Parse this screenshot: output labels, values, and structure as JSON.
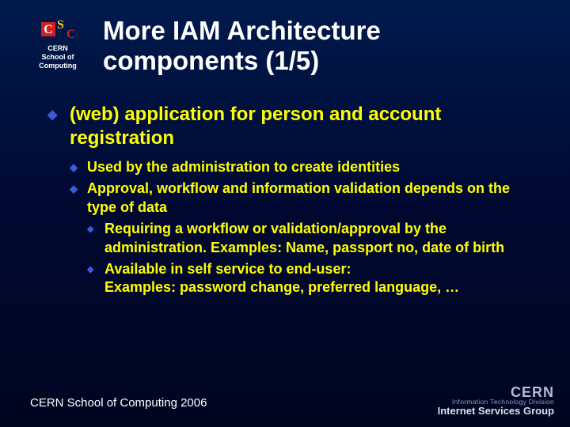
{
  "colors": {
    "bg_top": "#001a4d",
    "bg_bottom": "#000520",
    "title": "#ffffff",
    "body": "#ffff00",
    "bullet": "#3b5bd8",
    "footer": "#ffffff",
    "logo_red": "#d22020",
    "logo_yellow": "#f0c820"
  },
  "typography": {
    "title_fontsize": 33,
    "lvl1_fontsize": 24,
    "lvl2_fontsize": 18,
    "lvl3_fontsize": 18,
    "footer_fontsize": 15
  },
  "logo": {
    "caption_line1": "CERN",
    "caption_line2": "School of Computing"
  },
  "title": "More IAM Architecture components (1/5)",
  "bullets": {
    "lvl1": "(web) application for person and account registration",
    "lvl2": [
      "Used by the administration to create identities",
      "Approval, workflow and information validation depends on the type of data"
    ],
    "lvl3": [
      "Requiring a workflow or validation/approval by the administration. Examples: Name, passport no, date of birth",
      "Available in self service to end-user:\nExamples: password change, preferred language, …"
    ]
  },
  "footer": {
    "left": "CERN School of Computing 2006",
    "right_cern": "CERN",
    "right_itd": "Information Technology Division",
    "right_isg": "Internet Services Group"
  }
}
